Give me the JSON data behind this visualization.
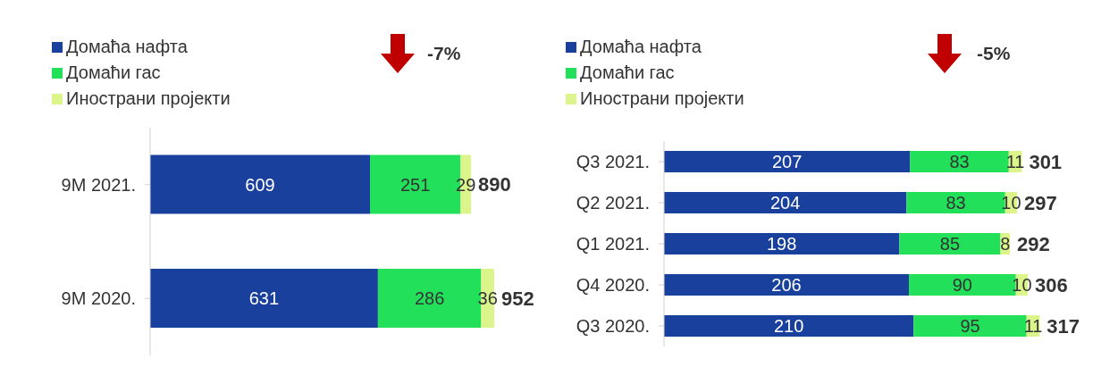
{
  "chart_data": [
    {
      "type": "bar",
      "orientation": "horizontal",
      "stacked": true,
      "categories": [
        "9M 2021.",
        "9M 2020."
      ],
      "series": [
        {
          "name": "Домаћа нафта",
          "color": "#1a409e",
          "values": [
            609,
            631
          ]
        },
        {
          "name": "Домаћи гас",
          "color": "#22e05a",
          "values": [
            251,
            286
          ]
        },
        {
          "name": "Инострани пројекти",
          "color": "#dcf58a",
          "values": [
            29,
            36
          ]
        }
      ],
      "data_labels": true,
      "totals": [
        "890",
        "952"
      ],
      "annotations": [
        "-7%"
      ],
      "legend": "top left",
      "tick_labels": "y",
      "grid": false
    },
    {
      "type": "bar",
      "orientation": "horizontal",
      "stacked": true,
      "categories": [
        "Q3 2021.",
        "Q2 2021.",
        "Q1 2021.",
        "Q4 2020.",
        "Q3 2020."
      ],
      "series": [
        {
          "name": "Домаћа нафта",
          "color": "#1a409e",
          "values": [
            207,
            204,
            198,
            206,
            210
          ]
        },
        {
          "name": "Домаћи гас",
          "color": "#22e05a",
          "values": [
            83,
            83,
            85,
            90,
            95
          ]
        },
        {
          "name": "Инострани пројекти",
          "color": "#dcf58a",
          "values": [
            11,
            10,
            8,
            10,
            11
          ]
        }
      ],
      "data_labels": true,
      "totals": [
        "301",
        "297",
        "292",
        "306",
        "317"
      ],
      "annotations": [
        "-5%"
      ],
      "legend": "top left",
      "tick_labels": "y",
      "grid": false
    }
  ]
}
